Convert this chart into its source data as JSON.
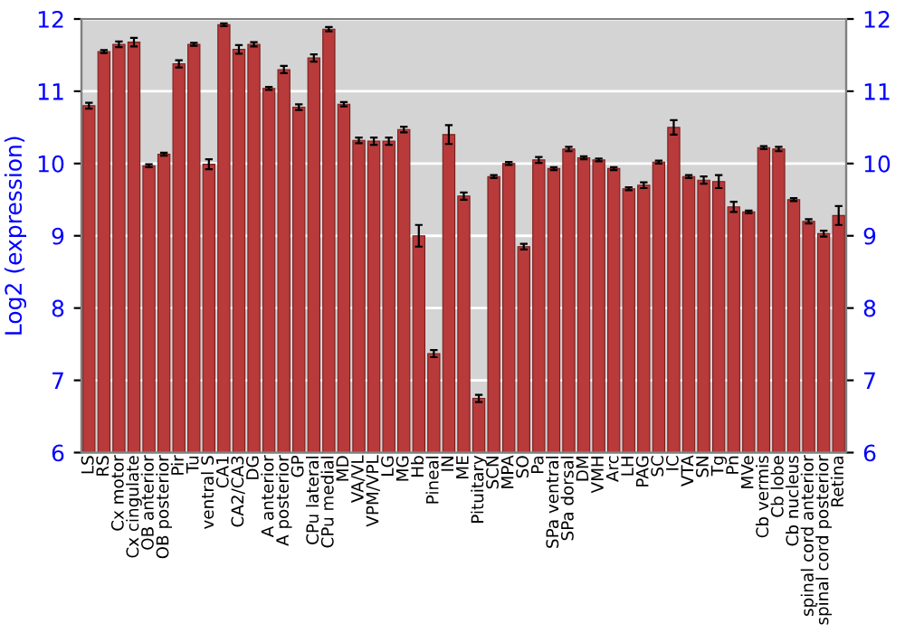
{
  "chart_data": {
    "type": "bar",
    "ylabel": "Log2 (expression)",
    "categories": [
      "LS",
      "RS",
      "Cx motor",
      "Cx cingulate",
      "OB anterior",
      "OB posterior",
      "Pir",
      "Tu",
      "ventral S",
      "CA1",
      "CA2/CA3",
      "DG",
      "A anterior",
      "A posterior",
      "GP",
      "CPu lateral",
      "CPu medial",
      "MD",
      "VA/VL",
      "VPM/VPL",
      "LG",
      "MG",
      "Hb",
      "Pineal",
      "IN",
      "ME",
      "Pituitary",
      "SCN",
      "MPA",
      "SO",
      "Pa",
      "SPa ventral",
      "SPa dorsal",
      "DM",
      "VMH",
      "Arc",
      "LH",
      "PAG",
      "SC",
      "IC",
      "VTA",
      "SN",
      "Tg",
      "Pn",
      "MVe",
      "Cb vermis",
      "Cb lobe",
      "Cb nucleus",
      "spinal cord anterior",
      "spinal cord posterior",
      "Retina"
    ],
    "values": [
      10.8,
      11.55,
      11.65,
      11.68,
      9.97,
      10.13,
      11.38,
      11.65,
      9.99,
      11.92,
      11.58,
      11.65,
      11.04,
      11.3,
      10.78,
      11.46,
      11.86,
      10.82,
      10.32,
      10.31,
      10.31,
      10.47,
      9.0,
      7.37,
      10.4,
      9.55,
      6.75,
      9.82,
      10.0,
      8.85,
      10.05,
      9.93,
      10.2,
      10.08,
      10.05,
      9.93,
      9.65,
      9.7,
      10.02,
      10.5,
      9.82,
      9.77,
      9.75,
      9.4,
      9.33,
      10.22,
      10.2,
      9.5,
      9.2,
      9.03,
      9.28
    ],
    "errors": [
      0.04,
      0.02,
      0.04,
      0.06,
      0.02,
      0.02,
      0.05,
      0.02,
      0.07,
      0.02,
      0.06,
      0.03,
      0.02,
      0.05,
      0.04,
      0.05,
      0.03,
      0.03,
      0.04,
      0.05,
      0.05,
      0.04,
      0.15,
      0.05,
      0.13,
      0.05,
      0.05,
      0.02,
      0.02,
      0.04,
      0.04,
      0.02,
      0.03,
      0.02,
      0.02,
      0.02,
      0.02,
      0.04,
      0.02,
      0.1,
      0.02,
      0.05,
      0.09,
      0.07,
      0.02,
      0.02,
      0.03,
      0.02,
      0.03,
      0.04,
      0.13
    ],
    "color": "#b83a3a",
    "ylim": [
      6,
      12
    ],
    "yticks": [
      6,
      7,
      8,
      9,
      10,
      11,
      12
    ],
    "y2lim": [
      6,
      12
    ],
    "y2ticks": [
      6,
      7,
      8,
      9,
      10,
      11,
      12
    ],
    "grid": "y"
  }
}
